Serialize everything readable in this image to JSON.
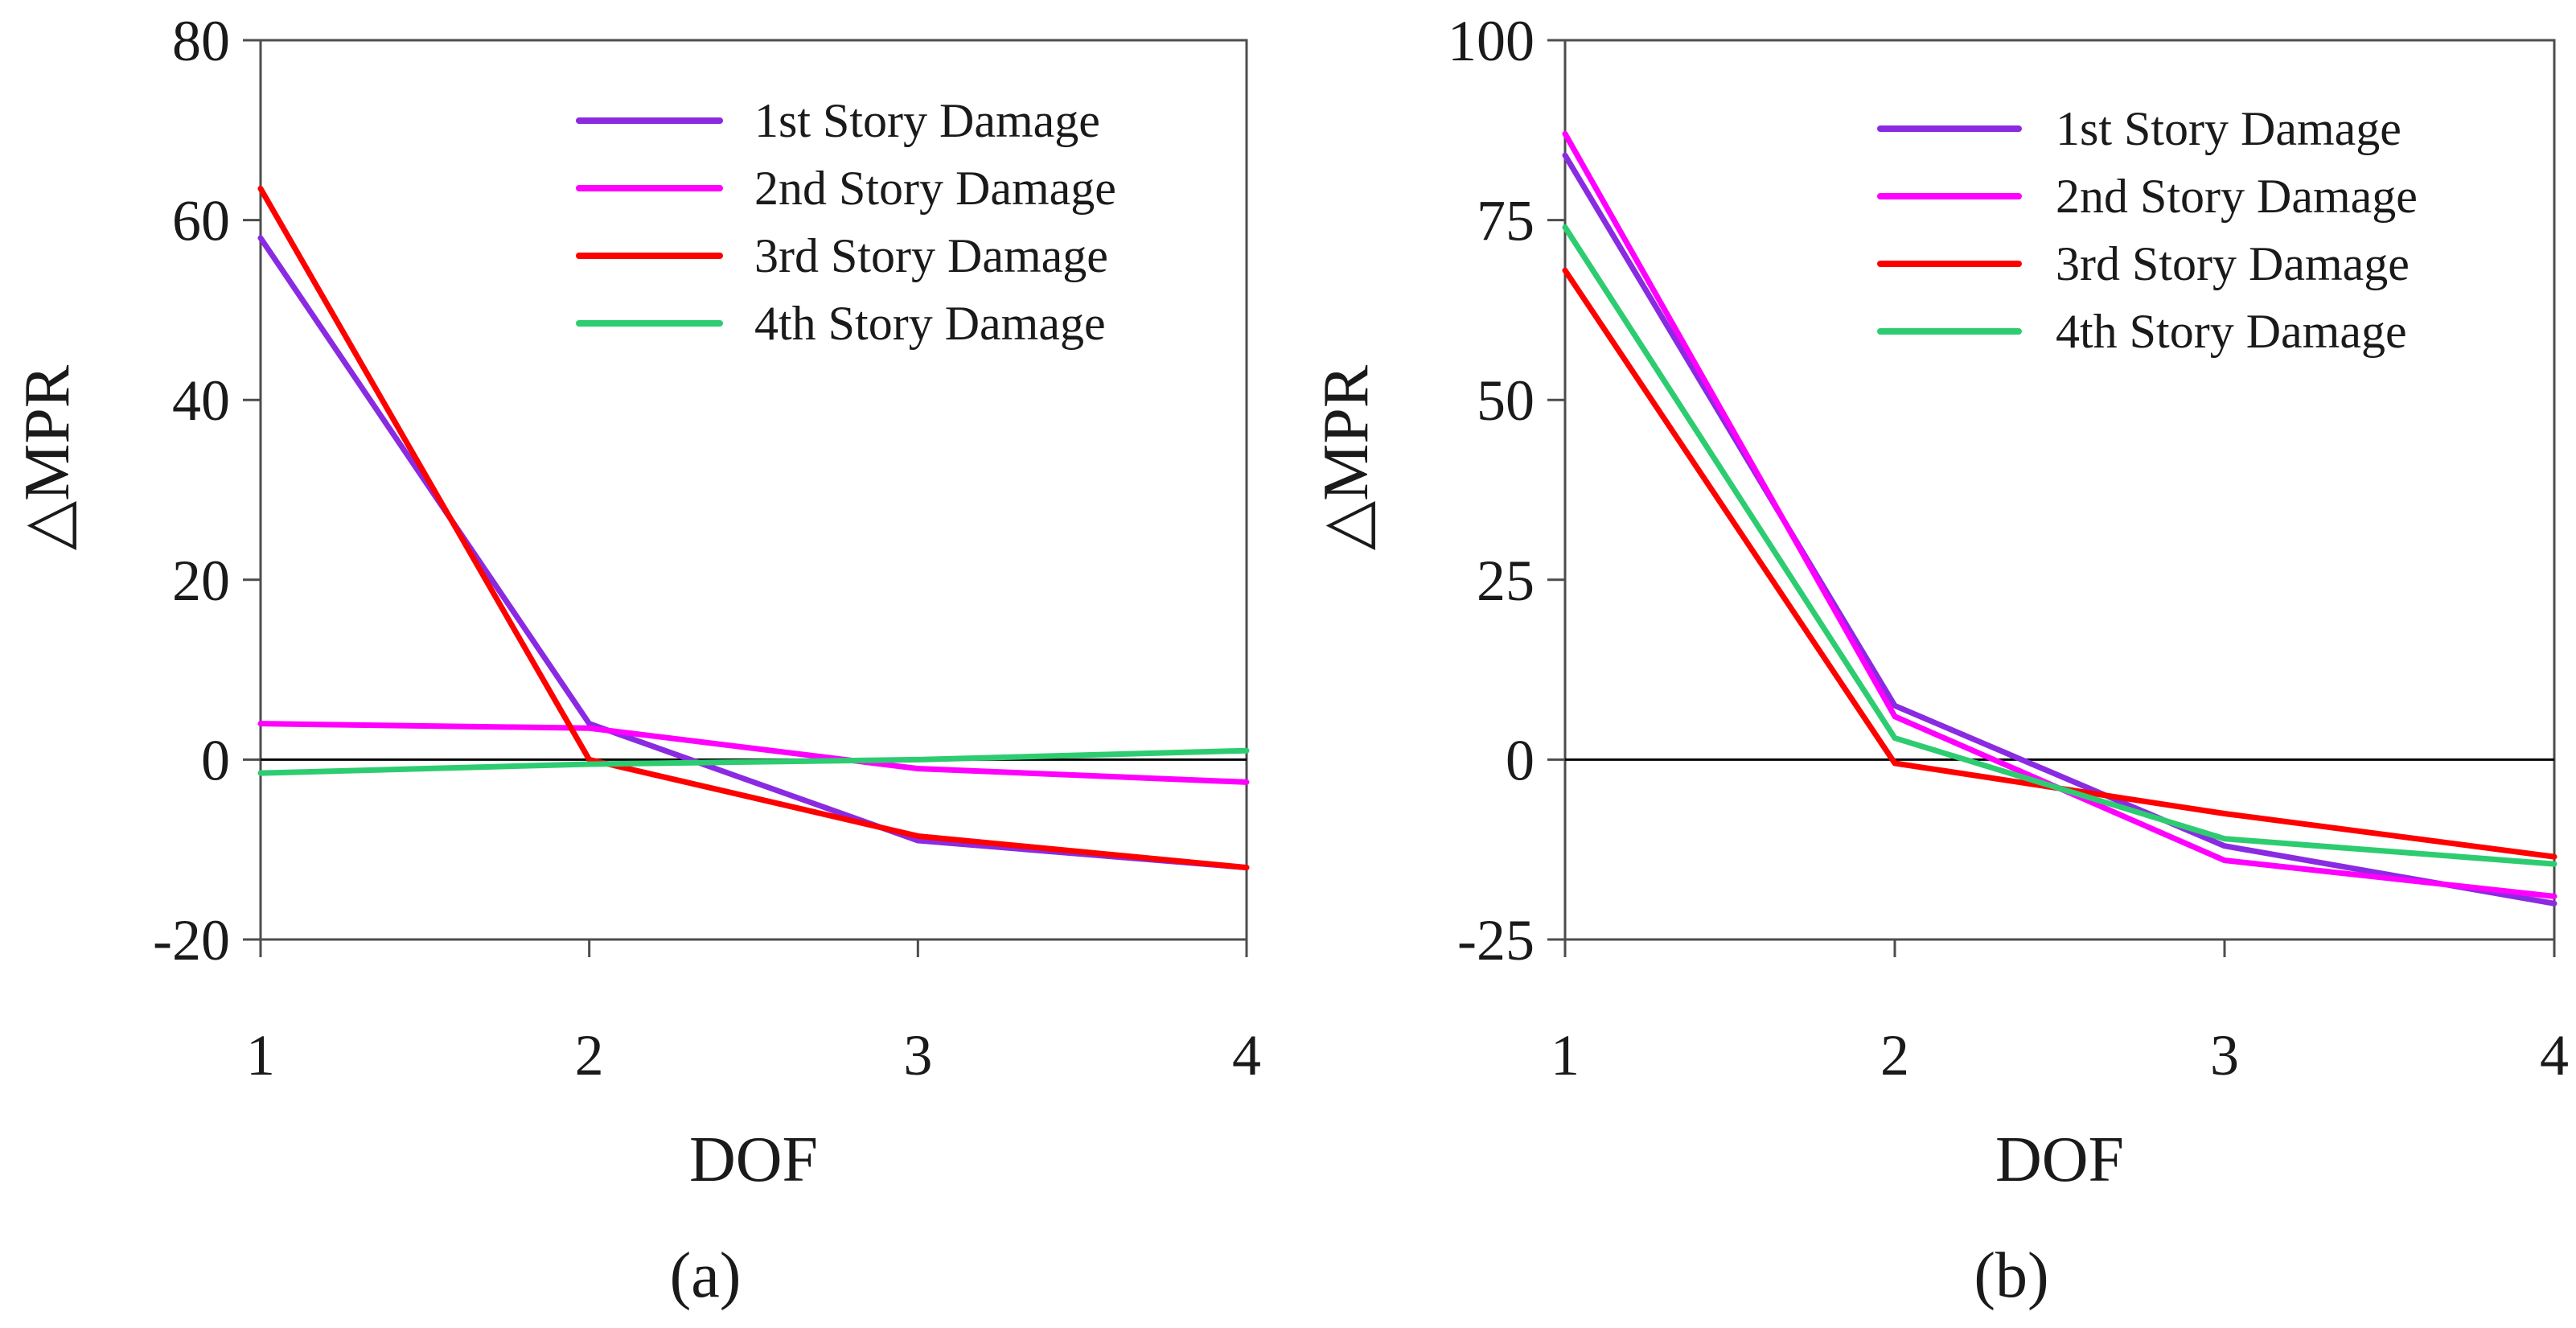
{
  "chart_data": [
    {
      "type": "line",
      "panel_label": "(a)",
      "xlabel": "DOF",
      "ylabel": "△MPR",
      "x": [
        1,
        2,
        3,
        4
      ],
      "xticks": [
        "1",
        "2",
        "3",
        "4"
      ],
      "xlim": [
        1,
        4
      ],
      "ylim": [
        -20,
        80
      ],
      "yticks": [
        -20,
        0,
        20,
        40,
        60,
        80
      ],
      "ytick_labels": [
        "-20",
        "0",
        "20",
        "40",
        "60",
        "80"
      ],
      "zero_line": true,
      "legend_position": "top-right",
      "series": [
        {
          "name": "1st Story Damage",
          "color": "#8a2be2",
          "values": [
            58,
            4,
            -9,
            -12
          ]
        },
        {
          "name": "2nd Story Damage",
          "color": "#ff00ff",
          "values": [
            4,
            3.5,
            -1,
            -2.5
          ]
        },
        {
          "name": "3rd Story Damage",
          "color": "#ff0000",
          "values": [
            63.5,
            0,
            -8.5,
            -12
          ]
        },
        {
          "name": "4th Story Damage",
          "color": "#2ecc71",
          "values": [
            -1.5,
            -0.5,
            0,
            1
          ]
        }
      ]
    },
    {
      "type": "line",
      "panel_label": "(b)",
      "xlabel": "DOF",
      "ylabel": "△MPR",
      "x": [
        1,
        2,
        3,
        4
      ],
      "xticks": [
        "1",
        "2",
        "3",
        "4"
      ],
      "xlim": [
        1,
        4
      ],
      "ylim": [
        -25,
        100
      ],
      "yticks": [
        -25,
        0,
        25,
        50,
        75,
        100
      ],
      "ytick_labels": [
        "-25",
        "0",
        "25",
        "50",
        "75",
        "100"
      ],
      "zero_line": true,
      "legend_position": "top-right",
      "series": [
        {
          "name": "1st Story Damage",
          "color": "#8a2be2",
          "values": [
            84,
            7.5,
            -12,
            -20
          ]
        },
        {
          "name": "2nd Story Damage",
          "color": "#ff00ff",
          "values": [
            87,
            6,
            -14,
            -19
          ]
        },
        {
          "name": "3rd Story Damage",
          "color": "#ff0000",
          "values": [
            68,
            -0.5,
            -7.5,
            -13.5
          ]
        },
        {
          "name": "4th Story Damage",
          "color": "#2ecc71",
          "values": [
            74,
            3,
            -11,
            -14.5
          ]
        }
      ]
    }
  ]
}
